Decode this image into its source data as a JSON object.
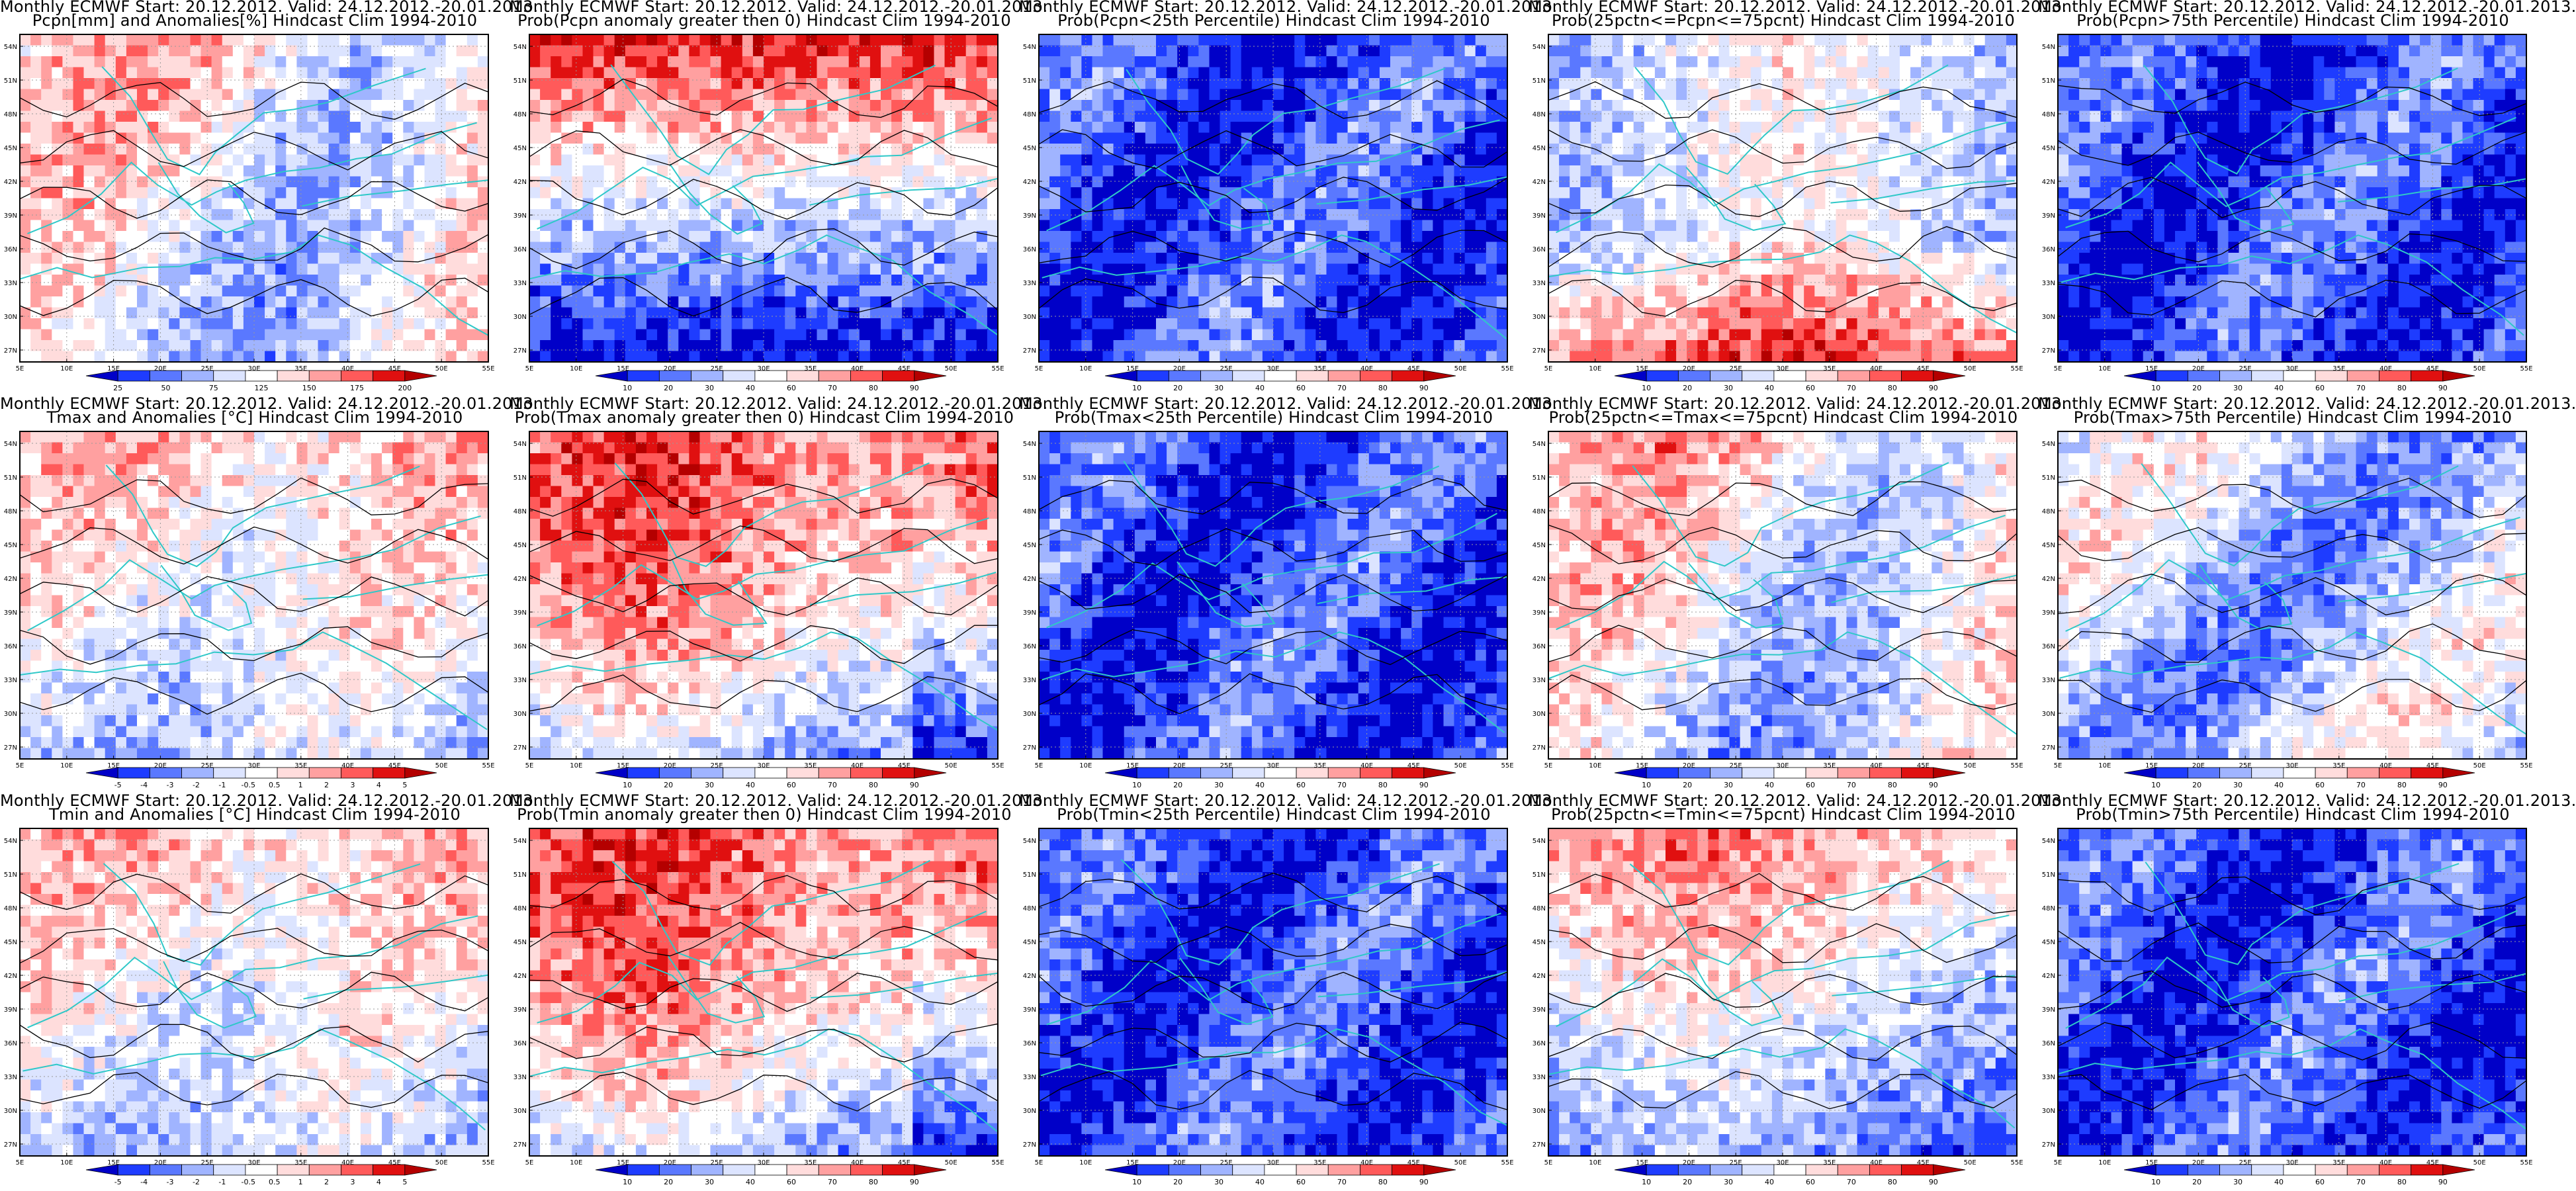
{
  "figure": {
    "rows": [
      {
        "variable": "precipitation",
        "panels": [
          {
            "title_line1": "Monthly ECMWF Start: 20.12.2012. Valid: 24.12.2012.-20.01.2013.",
            "title_line2": "Pcpn[mm] and Anomalies[%] Hindcast Clim 1994-2010",
            "colorbar": {
              "ticks": [
                "25",
                "50",
                "75",
                "125",
                "150",
                "175",
                "200"
              ],
              "colors": [
                "#0000c8",
                "#1e3cff",
                "#5a78ff",
                "#a0b4ff",
                "#dce4ff",
                "#ffffff",
                "#ffdcdc",
                "#ffa0a0",
                "#ff5a5a",
                "#e01010",
                "#b40000"
              ]
            },
            "map_tone": "mixed"
          },
          {
            "title_line1": "Monthly ECMWF Start: 20.12.2012. Valid: 24.12.2012.-20.01.2013.",
            "title_line2": "Prob(Pcpn anomaly greater then 0) Hindcast Clim 1994-2010",
            "colorbar": {
              "ticks": [
                "10",
                "20",
                "30",
                "40",
                "60",
                "70",
                "80",
                "90"
              ],
              "colors": [
                "#0000c8",
                "#1e3cff",
                "#5a78ff",
                "#a0b4ff",
                "#dce4ff",
                "#ffffff",
                "#ffdcdc",
                "#ffa0a0",
                "#ff5a5a",
                "#e01010",
                "#b40000"
              ]
            },
            "map_tone": "red-top-blue-bottom"
          },
          {
            "title_line1": "Monthly ECMWF Start: 20.12.2012. Valid: 24.12.2012.-20.01.2013.",
            "title_line2": "Prob(Pcpn<25th Percentile) Hindcast Clim 1994-2010",
            "colorbar": {
              "ticks": [
                "10",
                "20",
                "30",
                "40",
                "60",
                "70",
                "80",
                "90"
              ],
              "colors": [
                "#0000c8",
                "#1e3cff",
                "#5a78ff",
                "#a0b4ff",
                "#dce4ff",
                "#ffffff",
                "#ffdcdc",
                "#ffa0a0",
                "#ff5a5a",
                "#e01010",
                "#b40000"
              ]
            },
            "map_tone": "blue"
          },
          {
            "title_line1": "Monthly ECMWF Start: 20.12.2012. Valid: 24.12.2012.-20.01.2013.",
            "title_line2": "Prob(25pctn<=Pcpn<=75pcnt) Hindcast Clim 1994-2010",
            "colorbar": {
              "ticks": [
                "10",
                "20",
                "30",
                "40",
                "60",
                "70",
                "80",
                "90"
              ],
              "colors": [
                "#0000c8",
                "#1e3cff",
                "#5a78ff",
                "#a0b4ff",
                "#dce4ff",
                "#ffffff",
                "#ffdcdc",
                "#ffa0a0",
                "#ff5a5a",
                "#e01010",
                "#b40000"
              ]
            },
            "map_tone": "mixed-red-bottom"
          },
          {
            "title_line1": "Monthly ECMWF Start: 20.12.2012. Valid: 24.12.2012.-20.01.2013.",
            "title_line2": "Prob(Pcpn>75th Percentile) Hindcast Clim 1994-2010",
            "colorbar": {
              "ticks": [
                "10",
                "20",
                "30",
                "40",
                "60",
                "70",
                "80",
                "90"
              ],
              "colors": [
                "#0000c8",
                "#1e3cff",
                "#5a78ff",
                "#a0b4ff",
                "#dce4ff",
                "#ffffff",
                "#ffdcdc",
                "#ffa0a0",
                "#ff5a5a",
                "#e01010",
                "#b40000"
              ]
            },
            "map_tone": "blue"
          }
        ]
      },
      {
        "variable": "tmax",
        "panels": [
          {
            "title_line1": "Monthly ECMWF Start: 20.12.2012. Valid: 24.12.2012.-20.01.2013.",
            "title_line2": "Tmax and Anomalies [°C] Hindcast Clim 1994-2010",
            "colorbar": {
              "ticks": [
                "-5",
                "-4",
                "-3",
                "-2",
                "-1",
                "-0.5",
                "0.5",
                "1",
                "2",
                "3",
                "4",
                "5"
              ],
              "colors": [
                "#0000c8",
                "#1e3cff",
                "#5a78ff",
                "#a0b4ff",
                "#dce4ff",
                "#ffffff",
                "#ffdcdc",
                "#ffa0a0",
                "#ff5a5a",
                "#e01010",
                "#b40000"
              ]
            },
            "map_tone": "light-red"
          },
          {
            "title_line1": "Monthly ECMWF Start: 20.12.2012. Valid: 24.12.2012.-20.01.2013.",
            "title_line2": "Prob(Tmax anomaly greater then 0) Hindcast Clim 1994-2010",
            "colorbar": {
              "ticks": [
                "10",
                "20",
                "30",
                "40",
                "60",
                "70",
                "80",
                "90"
              ],
              "colors": [
                "#0000c8",
                "#1e3cff",
                "#5a78ff",
                "#a0b4ff",
                "#dce4ff",
                "#ffffff",
                "#ffdcdc",
                "#ffa0a0",
                "#ff5a5a",
                "#e01010",
                "#b40000"
              ]
            },
            "map_tone": "red"
          },
          {
            "title_line1": "Monthly ECMWF Start: 20.12.2012. Valid: 24.12.2012.-20.01.2013.",
            "title_line2": "Prob(Tmax<25th Percentile) Hindcast Clim 1994-2010",
            "colorbar": {
              "ticks": [
                "10",
                "20",
                "30",
                "40",
                "60",
                "70",
                "80",
                "90"
              ],
              "colors": [
                "#0000c8",
                "#1e3cff",
                "#5a78ff",
                "#a0b4ff",
                "#dce4ff",
                "#ffffff",
                "#ffdcdc",
                "#ffa0a0",
                "#ff5a5a",
                "#e01010",
                "#b40000"
              ]
            },
            "map_tone": "blue"
          },
          {
            "title_line1": "Monthly ECMWF Start: 20.12.2012. Valid: 24.12.2012.-20.01.2013.",
            "title_line2": "Prob(25pctn<=Tmax<=75pcnt) Hindcast Clim 1994-2010",
            "colorbar": {
              "ticks": [
                "10",
                "20",
                "30",
                "40",
                "60",
                "70",
                "80",
                "90"
              ],
              "colors": [
                "#0000c8",
                "#1e3cff",
                "#5a78ff",
                "#a0b4ff",
                "#dce4ff",
                "#ffffff",
                "#ffdcdc",
                "#ffa0a0",
                "#ff5a5a",
                "#e01010",
                "#b40000"
              ]
            },
            "map_tone": "mixed"
          },
          {
            "title_line1": "Monthly ECMWF Start: 20.12.2012. Valid: 24.12.2012.-20.01.2013.",
            "title_line2": "Prob(Tmax>75th Percentile) Hindcast Clim 1994-2010",
            "colorbar": {
              "ticks": [
                "10",
                "20",
                "30",
                "40",
                "60",
                "70",
                "80",
                "90"
              ],
              "colors": [
                "#0000c8",
                "#1e3cff",
                "#5a78ff",
                "#a0b4ff",
                "#dce4ff",
                "#ffffff",
                "#ffdcdc",
                "#ffa0a0",
                "#ff5a5a",
                "#e01010",
                "#b40000"
              ]
            },
            "map_tone": "mixed-blue"
          }
        ]
      },
      {
        "variable": "tmin",
        "panels": [
          {
            "title_line1": "Monthly ECMWF Start: 20.12.2012. Valid: 24.12.2012.-20.01.2013.",
            "title_line2": "Tmin and Anomalies [°C] Hindcast Clim 1994-2010",
            "colorbar": {
              "ticks": [
                "-5",
                "-4",
                "-3",
                "-2",
                "-1",
                "-0.5",
                "0.5",
                "1",
                "2",
                "3",
                "4",
                "5"
              ],
              "colors": [
                "#0000c8",
                "#1e3cff",
                "#5a78ff",
                "#a0b4ff",
                "#dce4ff",
                "#ffffff",
                "#ffdcdc",
                "#ffa0a0",
                "#ff5a5a",
                "#e01010",
                "#b40000"
              ]
            },
            "map_tone": "light-red"
          },
          {
            "title_line1": "Monthly ECMWF Start: 20.12.2012. Valid: 24.12.2012.-20.01.2013.",
            "title_line2": "Prob(Tmin anomaly greater then 0) Hindcast Clim 1994-2010",
            "colorbar": {
              "ticks": [
                "10",
                "20",
                "30",
                "40",
                "60",
                "70",
                "80",
                "90"
              ],
              "colors": [
                "#0000c8",
                "#1e3cff",
                "#5a78ff",
                "#a0b4ff",
                "#dce4ff",
                "#ffffff",
                "#ffdcdc",
                "#ffa0a0",
                "#ff5a5a",
                "#e01010",
                "#b40000"
              ]
            },
            "map_tone": "red"
          },
          {
            "title_line1": "Monthly ECMWF Start: 20.12.2012. Valid: 24.12.2012.-20.01.2013.",
            "title_line2": "Prob(Tmin<25th Percentile) Hindcast Clim 1994-2010",
            "colorbar": {
              "ticks": [
                "10",
                "20",
                "30",
                "40",
                "60",
                "70",
                "80",
                "90"
              ],
              "colors": [
                "#0000c8",
                "#1e3cff",
                "#5a78ff",
                "#a0b4ff",
                "#dce4ff",
                "#ffffff",
                "#ffdcdc",
                "#ffa0a0",
                "#ff5a5a",
                "#e01010",
                "#b40000"
              ]
            },
            "map_tone": "blue"
          },
          {
            "title_line1": "Monthly ECMWF Start: 20.12.2012. Valid: 24.12.2012.-20.01.2013.",
            "title_line2": "Prob(25pctn<=Tmin<=75pcnt) Hindcast Clim 1994-2010",
            "colorbar": {
              "ticks": [
                "10",
                "20",
                "30",
                "40",
                "60",
                "70",
                "80",
                "90"
              ],
              "colors": [
                "#0000c8",
                "#1e3cff",
                "#5a78ff",
                "#a0b4ff",
                "#dce4ff",
                "#ffffff",
                "#ffdcdc",
                "#ffa0a0",
                "#ff5a5a",
                "#e01010",
                "#b40000"
              ]
            },
            "map_tone": "mixed-red-top"
          },
          {
            "title_line1": "Monthly ECMWF Start: 20.12.2012. Valid: 24.12.2012.-20.01.2013.",
            "title_line2": "Prob(Tmin>75th Percentile) Hindcast Clim 1994-2010",
            "colorbar": {
              "ticks": [
                "10",
                "20",
                "30",
                "40",
                "60",
                "70",
                "80",
                "90"
              ],
              "colors": [
                "#0000c8",
                "#1e3cff",
                "#5a78ff",
                "#a0b4ff",
                "#dce4ff",
                "#ffffff",
                "#ffdcdc",
                "#ffa0a0",
                "#ff5a5a",
                "#e01010",
                "#b40000"
              ]
            },
            "map_tone": "blue"
          }
        ]
      }
    ],
    "lon_ticks": [
      "5E",
      "10E",
      "15E",
      "20E",
      "25E",
      "30E",
      "35E",
      "40E",
      "45E",
      "50E",
      "55E"
    ],
    "lat_ticks": [
      "27N",
      "30N",
      "33N",
      "36N",
      "39N",
      "42N",
      "45N",
      "48N",
      "51N",
      "54N"
    ],
    "colors": {
      "coastline": "#2fc8c8",
      "contour": "#000000",
      "frame": "#000000",
      "gridline": "#9a9a9a"
    }
  }
}
